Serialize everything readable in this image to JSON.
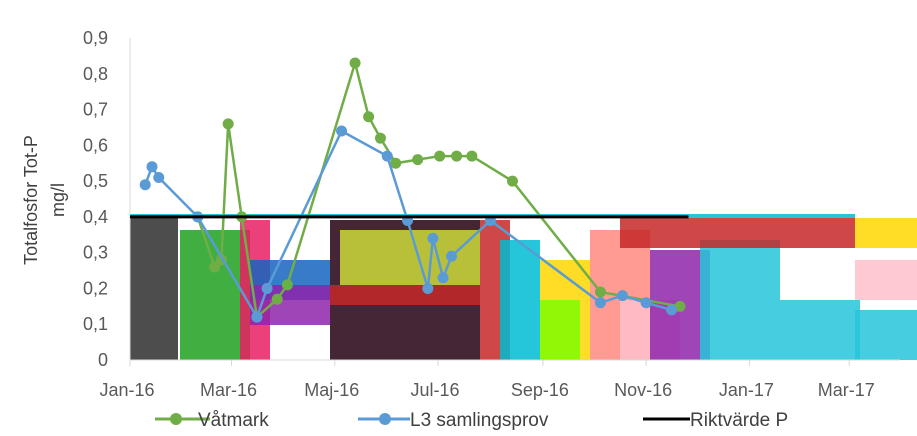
{
  "chart_data": {
    "type": "line",
    "ylabel_line1": "Totalfosfor Tot-P",
    "ylabel_line2": "mg/l",
    "ylim": [
      0,
      0.9
    ],
    "y_ticks": [
      "0",
      "0,1",
      "0,2",
      "0,3",
      "0,4",
      "0,5",
      "0,6",
      "0,7",
      "0,8",
      "0,9"
    ],
    "x_ticks": [
      "Jan-16",
      "Mar-16",
      "Maj-16",
      "Jul-16",
      "Sep-16",
      "Nov-16",
      "Jan-17",
      "Mar-17"
    ],
    "grid": false,
    "legend_position": "bottom",
    "series": [
      {
        "name": "Våtmark",
        "color": "#70AD47",
        "marker": true,
        "points": [
          [
            "Feb-16 early",
            0.4
          ],
          [
            "Feb-16 mid",
            0.26
          ],
          [
            "Feb-16 late",
            0.28
          ],
          [
            "Mar-16",
            0.66
          ],
          [
            "Mar-16 mid",
            0.4
          ],
          [
            "Apr-16",
            0.12
          ],
          [
            "Apr-16 late",
            0.17
          ],
          [
            "Maj-16",
            0.21
          ],
          [
            "Jul-16",
            0.83
          ],
          [
            "Aug-16",
            0.68
          ],
          [
            "Aug-16 mid",
            0.62
          ],
          [
            "Aug-16 late",
            0.55
          ],
          [
            "Sep-16",
            0.56
          ],
          [
            "Okt-16",
            0.57
          ],
          [
            "Okt-16 mid",
            0.57
          ],
          [
            "Nov-16",
            0.57
          ],
          [
            "Dec-16",
            0.5
          ],
          [
            "Mar-17 early",
            0.19
          ],
          [
            "Mar-17 late",
            0.15
          ]
        ],
        "values": [
          0.4,
          0.26,
          0.28,
          0.66,
          0.4,
          0.12,
          0.17,
          0.21,
          0.83,
          0.68,
          0.62,
          0.55,
          0.56,
          0.57,
          0.57,
          0.57,
          0.5,
          0.19,
          0.15
        ],
        "x_days": [
          40,
          50,
          54,
          58,
          66,
          75,
          87,
          93,
          133,
          141,
          148,
          157,
          170,
          183,
          193,
          202,
          226,
          278,
          325
        ]
      },
      {
        "name": "L3 samlingsprov",
        "color": "#5B9BD5",
        "marker": true,
        "values": [
          0.49,
          0.54,
          0.51,
          0.4,
          0.12,
          0.2,
          0.64,
          0.57,
          0.39,
          0.2,
          0.34,
          0.23,
          0.29,
          0.39,
          0.16,
          0.18,
          0.16,
          0.14
        ],
        "x_days": [
          9,
          13,
          17,
          40,
          75,
          81,
          125,
          152,
          164,
          176,
          179,
          185,
          190,
          213,
          278,
          291,
          305,
          320
        ]
      },
      {
        "name": "Riktvärde P",
        "color": "#000000",
        "marker": false,
        "values": [
          0.4,
          0.4
        ],
        "x_days": [
          0,
          330
        ]
      }
    ],
    "x_range_days": [
      0,
      455
    ],
    "x_tick_days": [
      0,
      60,
      121,
      182,
      244,
      305,
      366,
      425
    ],
    "overlay_colors": [
      "#2E2E2E",
      "#1FA01F",
      "#E91E63",
      "#FFD600",
      "#1565C0",
      "#8E24AA",
      "#00BCD4",
      "#C62828",
      "#CDDC39",
      "#FF8A80",
      "#240014",
      "#7CFC00",
      "#FFC0CB",
      "#26C6DA"
    ]
  }
}
